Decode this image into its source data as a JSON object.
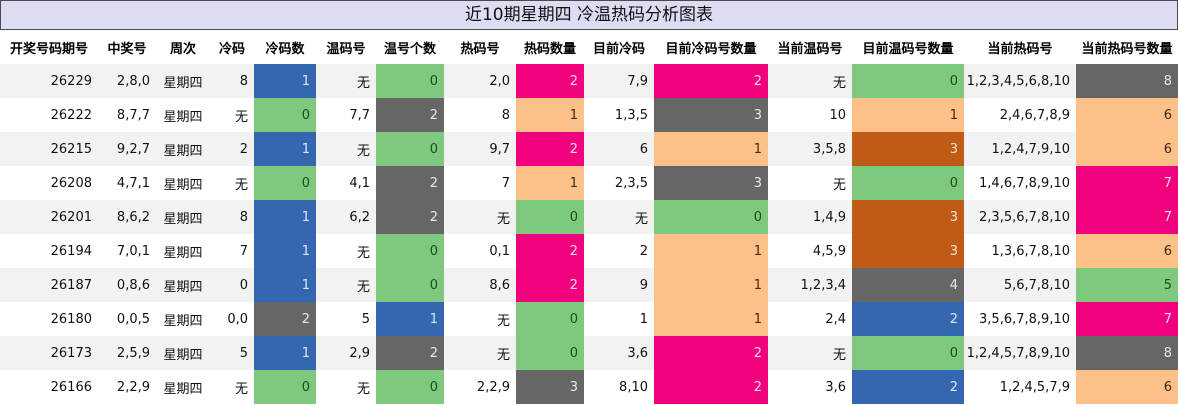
{
  "title": "近10期星期四 冷温热码分析图表",
  "colors": {
    "blue": "#3567b0",
    "green": "#7fc97f",
    "gray": "#666666",
    "pink": "#f0027f",
    "peach": "#fdc086",
    "brown": "#bf5b17"
  },
  "columns": [
    "开奖号码期号",
    "中奖号",
    "周次",
    "冷码",
    "冷码数",
    "温码号",
    "温号个数",
    "热码号",
    "热码数量",
    "目前冷码",
    "目前冷码号数量",
    "当前温码号",
    "目前温码号数量",
    "当前热码号",
    "当前热码号数量"
  ],
  "rows": [
    [
      "26229",
      "2,8,0",
      "星期四",
      "8",
      "1",
      "无",
      "0",
      "2,0",
      "2",
      "7,9",
      "2",
      "无",
      "0",
      "1,2,3,4,5,6,8,10",
      "8"
    ],
    [
      "26222",
      "8,7,7",
      "星期四",
      "无",
      "0",
      "7,7",
      "2",
      "8",
      "1",
      "1,3,5",
      "3",
      "10",
      "1",
      "2,4,6,7,8,9",
      "6"
    ],
    [
      "26215",
      "9,2,7",
      "星期四",
      "2",
      "1",
      "无",
      "0",
      "9,7",
      "2",
      "6",
      "1",
      "3,5,8",
      "3",
      "1,2,4,7,9,10",
      "6"
    ],
    [
      "26208",
      "4,7,1",
      "星期四",
      "无",
      "0",
      "4,1",
      "2",
      "7",
      "1",
      "2,3,5",
      "3",
      "无",
      "0",
      "1,4,6,7,8,9,10",
      "7"
    ],
    [
      "26201",
      "8,6,2",
      "星期四",
      "8",
      "1",
      "6,2",
      "2",
      "无",
      "0",
      "无",
      "0",
      "1,4,9",
      "3",
      "2,3,5,6,7,8,10",
      "7"
    ],
    [
      "26194",
      "7,0,1",
      "星期四",
      "7",
      "1",
      "无",
      "0",
      "0,1",
      "2",
      "2",
      "1",
      "4,5,9",
      "3",
      "1,3,6,7,8,10",
      "6"
    ],
    [
      "26187",
      "0,8,6",
      "星期四",
      "0",
      "1",
      "无",
      "0",
      "8,6",
      "2",
      "9",
      "1",
      "1,2,3,4",
      "4",
      "5,6,7,8,10",
      "5"
    ],
    [
      "26180",
      "0,0,5",
      "星期四",
      "0,0",
      "2",
      "5",
      "1",
      "无",
      "0",
      "1",
      "1",
      "2,4",
      "2",
      "3,5,6,7,8,9,10",
      "7"
    ],
    [
      "26173",
      "2,5,9",
      "星期四",
      "5",
      "1",
      "2,9",
      "2",
      "无",
      "0",
      "3,6",
      "2",
      "无",
      "0",
      "1,2,4,5,7,8,9,10",
      "8"
    ],
    [
      "26166",
      "2,2,9",
      "星期四",
      "无",
      "0",
      "无",
      "0",
      "2,2,9",
      "3",
      "8,10",
      "2",
      "3,6",
      "2",
      "1,2,4,5,7,9",
      "6"
    ]
  ],
  "cell_colors": [
    {
      "c4": "blue",
      "c6": "green",
      "c8": "pink",
      "c10": "pink",
      "c12": "green",
      "c14": "gray"
    },
    {
      "c4": "green",
      "c6": "gray",
      "c8": "peach",
      "c10": "gray",
      "c12": "peach",
      "c14": "peach"
    },
    {
      "c4": "blue",
      "c6": "green",
      "c8": "pink",
      "c10": "peach",
      "c12": "brown",
      "c14": "peach"
    },
    {
      "c4": "green",
      "c6": "gray",
      "c8": "peach",
      "c10": "gray",
      "c12": "green",
      "c14": "pink"
    },
    {
      "c4": "blue",
      "c6": "gray",
      "c8": "green",
      "c10": "green",
      "c12": "brown",
      "c14": "pink"
    },
    {
      "c4": "blue",
      "c6": "green",
      "c8": "pink",
      "c10": "peach",
      "c12": "brown",
      "c14": "peach"
    },
    {
      "c4": "blue",
      "c6": "green",
      "c8": "pink",
      "c10": "peach",
      "c12": "gray",
      "c14": "green"
    },
    {
      "c4": "gray",
      "c6": "blue",
      "c8": "green",
      "c10": "peach",
      "c12": "blue",
      "c14": "pink"
    },
    {
      "c4": "blue",
      "c6": "gray",
      "c8": "green",
      "c10": "pink",
      "c12": "green",
      "c14": "gray"
    },
    {
      "c4": "green",
      "c6": "green",
      "c8": "gray",
      "c10": "pink",
      "c12": "blue",
      "c14": "peach"
    }
  ]
}
